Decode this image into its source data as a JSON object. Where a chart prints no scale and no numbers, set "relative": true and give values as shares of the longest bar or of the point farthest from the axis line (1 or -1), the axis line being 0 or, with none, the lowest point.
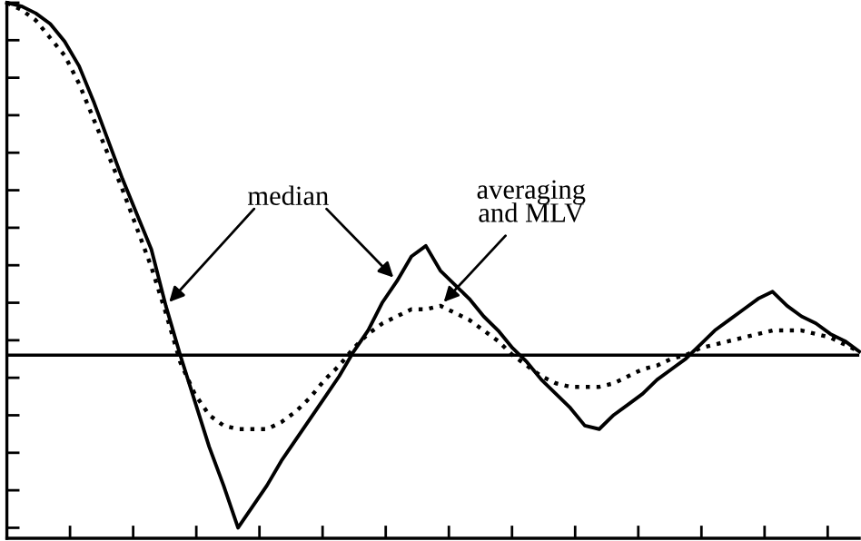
{
  "chart_data": {
    "type": "line",
    "relative": true,
    "annotations": [
      "median",
      "averaging\nand MLV"
    ],
    "legend": false,
    "grid": false,
    "marker": "none",
    "categories": [
      null,
      null,
      null,
      null,
      null,
      null,
      null,
      null,
      null,
      null,
      null,
      null,
      null,
      null,
      null,
      null,
      null,
      null,
      null,
      null,
      null,
      null,
      null,
      null,
      null,
      null,
      null,
      null,
      null,
      null,
      null,
      null,
      null,
      null,
      null,
      null,
      null,
      null,
      null,
      null,
      null,
      null,
      null,
      null,
      null,
      null,
      null,
      null,
      null,
      null,
      null,
      null,
      null,
      null,
      null,
      null,
      null,
      null,
      null,
      null
    ],
    "series": [
      {
        "color": "#000000",
        "line_style": "solid",
        "values": [
          1,
          0.99,
          0.97,
          0.94,
          0.89,
          0.82,
          0.72,
          0.61,
          0.5,
          0.4,
          0.3,
          0.14,
          0,
          -0.13,
          -0.26,
          -0.37,
          -0.49,
          -0.43,
          -0.37,
          -0.3,
          -0.24,
          -0.18,
          -0.12,
          -0.06,
          0.01,
          0.07,
          0.15,
          0.21,
          0.28,
          0.31,
          0.24,
          0.2,
          0.16,
          0.11,
          0.07,
          0.02,
          -0.02,
          -0.07,
          -0.11,
          -0.15,
          -0.2,
          -0.21,
          -0.17,
          -0.14,
          -0.11,
          -0.07,
          -0.04,
          -0.01,
          0.03,
          0.07,
          0.1,
          0.13,
          0.16,
          0.18,
          0.14,
          0.11,
          0.09,
          0.06,
          0.04,
          0.01
        ]
      },
      {
        "color": "#000000",
        "line_style": "dotted",
        "values": [
          1,
          0.98,
          0.95,
          0.9,
          0.85,
          0.77,
          0.67,
          0.57,
          0.47,
          0.36,
          0.25,
          0.12,
          -0.02,
          -0.11,
          -0.17,
          -0.2,
          -0.21,
          -0.21,
          -0.21,
          -0.19,
          -0.16,
          -0.12,
          -0.07,
          -0.03,
          0.02,
          0.06,
          0.09,
          0.11,
          0.13,
          0.13,
          0.14,
          0.12,
          0.1,
          0.07,
          0.04,
          0,
          -0.03,
          -0.06,
          -0.08,
          -0.09,
          -0.09,
          -0.09,
          -0.08,
          -0.06,
          -0.04,
          -0.03,
          -0.01,
          0,
          0.02,
          0.03,
          0.04,
          0.05,
          0.06,
          0.07,
          0.07,
          0.07,
          0.06,
          0.05,
          0.03,
          0.01
        ]
      }
    ]
  }
}
